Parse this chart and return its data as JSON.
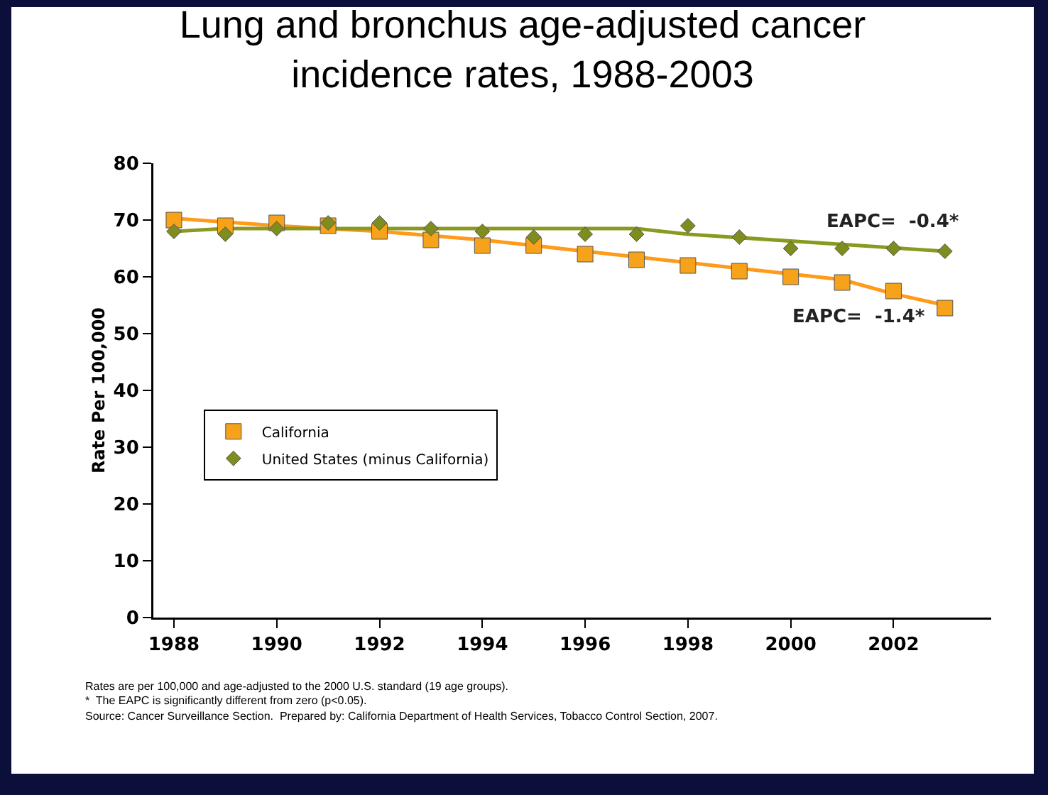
{
  "chart_data": {
    "type": "scatter",
    "title": "Lung and bronchus age-adjusted cancer incidence rates, 1988-2003",
    "ylabel": "Rate Per 100,000",
    "x": [
      1988,
      1989,
      1990,
      1991,
      1992,
      1993,
      1994,
      1995,
      1996,
      1997,
      1998,
      1999,
      2000,
      2001,
      2002,
      2003
    ],
    "series": [
      {
        "name": "California",
        "color": "#f7a21b",
        "marker": "square",
        "values": [
          70,
          69,
          69.5,
          69,
          68,
          66.5,
          65.5,
          65.5,
          64,
          63,
          62,
          61,
          60,
          59,
          57.5,
          54.5
        ]
      },
      {
        "name": "United States (minus California)",
        "color": "#7f8c1e",
        "marker": "diamond",
        "values": [
          68,
          67.5,
          68.5,
          69.5,
          69.5,
          68.5,
          68,
          67,
          67.5,
          67.5,
          69,
          67,
          65,
          65,
          65,
          64.5
        ]
      },
      {
        "type": "line",
        "color": "#ff9a1a",
        "x": [
          1988,
          1990,
          1992,
          1994,
          1996,
          1998,
          2000,
          2001,
          2002,
          2003
        ],
        "values": [
          70.3,
          69,
          68,
          66.5,
          64.5,
          62.5,
          60.5,
          59.5,
          57,
          55
        ]
      },
      {
        "type": "line",
        "color": "#8a9a20",
        "x": [
          1988,
          1989,
          1997,
          1998,
          2003
        ],
        "values": [
          68,
          68.5,
          68.5,
          67.5,
          64.5
        ]
      }
    ],
    "xlim": [
      1987.6,
      2003.9
    ],
    "xticks": [
      1988,
      1990,
      1992,
      1994,
      1996,
      1998,
      2000,
      2002
    ],
    "ylim": [
      0,
      80
    ],
    "yticks": [
      0,
      10,
      20,
      30,
      40,
      50,
      60,
      70,
      80
    ],
    "grid": false,
    "legend": "left",
    "annotations": [
      "EAPC=  -0.4*",
      "EAPC=  -1.4*",
      "Rates are per 100,000 and age-adjusted to the 2000 U.S. standard (19 age groups).",
      "*  The EAPC is significantly different from zero (p<0.05).",
      "Source: Cancer Surveillance Section.  Prepared by: California Department of Health Services, Tobacco Control Section, 2007."
    ]
  }
}
